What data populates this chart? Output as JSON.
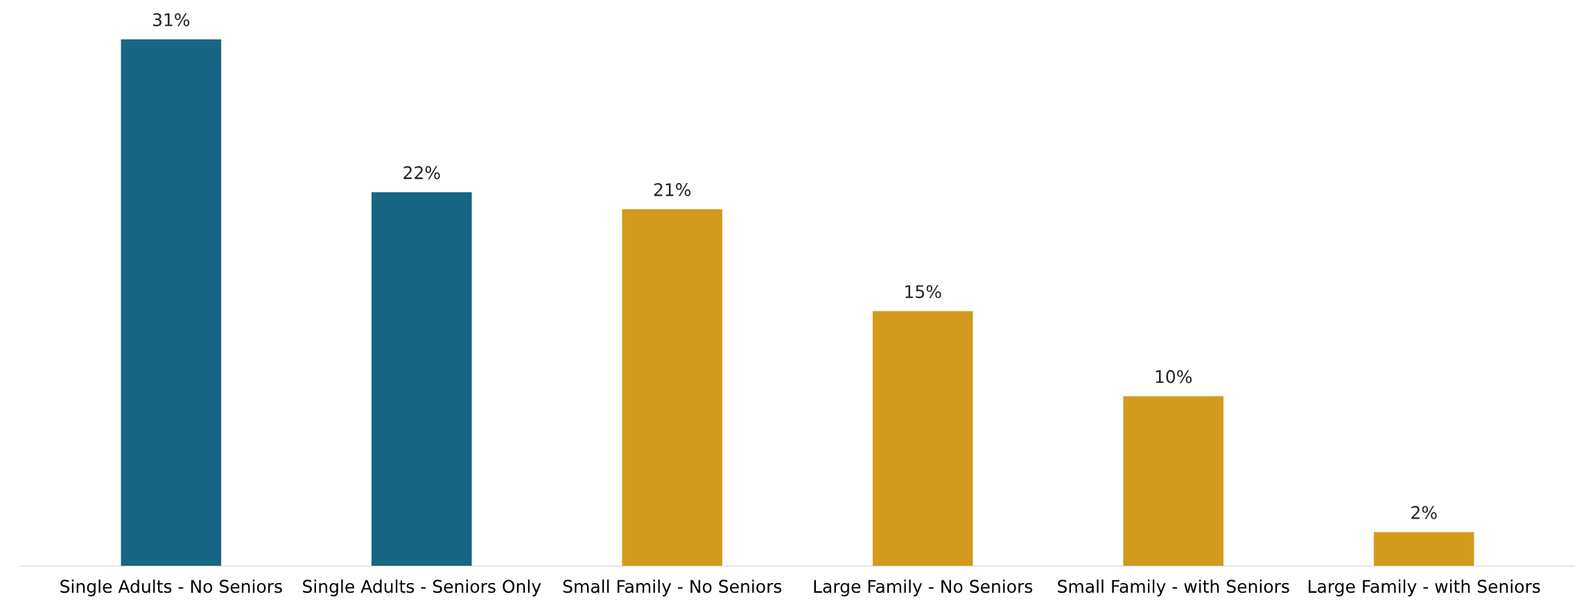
{
  "chart_data": {
    "type": "bar",
    "categories": [
      "Single Adults - No Seniors",
      "Single Adults - Seniors Only",
      "Small Family - No Seniors",
      "Large Family - No Seniors",
      "Small Family - with Seniors",
      "Large Family - with Seniors"
    ],
    "values": [
      31,
      22,
      21,
      15,
      10,
      2
    ],
    "colors": [
      "#166684",
      "#166684",
      "#d29b1e",
      "#d29b1e",
      "#d29b1e",
      "#d29b1e"
    ],
    "value_labels": [
      "31%",
      "22%",
      "21%",
      "15%",
      "10%",
      "2%"
    ],
    "grid": false,
    "legend": false
  }
}
